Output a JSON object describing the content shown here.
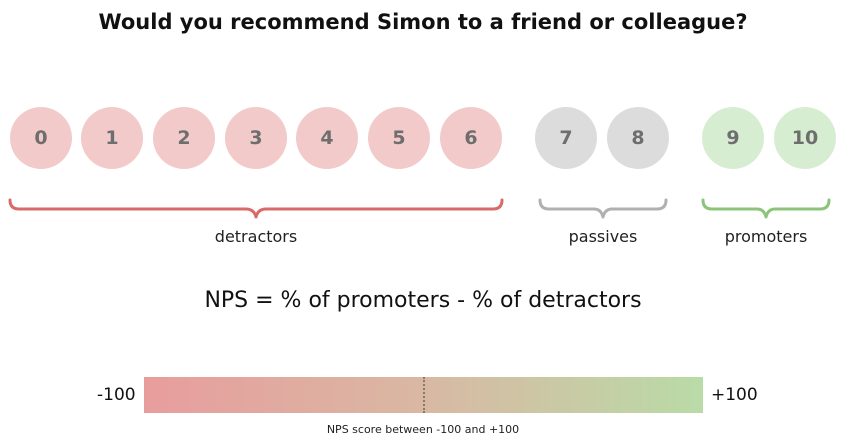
{
  "title": "Would you recommend Simon to a friend or colleague?",
  "scores": {
    "detractors": [
      "0",
      "1",
      "2",
      "3",
      "4",
      "5",
      "6"
    ],
    "passives": [
      "7",
      "8"
    ],
    "promoters": [
      "9",
      "10"
    ]
  },
  "groups": {
    "detractors": "detractors",
    "passives": "passives",
    "promoters": "promoters"
  },
  "colors": {
    "detractor_circle": "#f3caca",
    "passive_circle": "#dcdcdc",
    "promoter_circle": "#d7edd2",
    "detractor_brace": "#d96a6a",
    "passive_brace": "#b0b0b0",
    "promoter_brace": "#8cc47a"
  },
  "formula": "NPS = % of promoters - % of detractors",
  "scale": {
    "min_label": "-100",
    "max_label": "+100",
    "caption": "NPS score between -100 and +100"
  }
}
